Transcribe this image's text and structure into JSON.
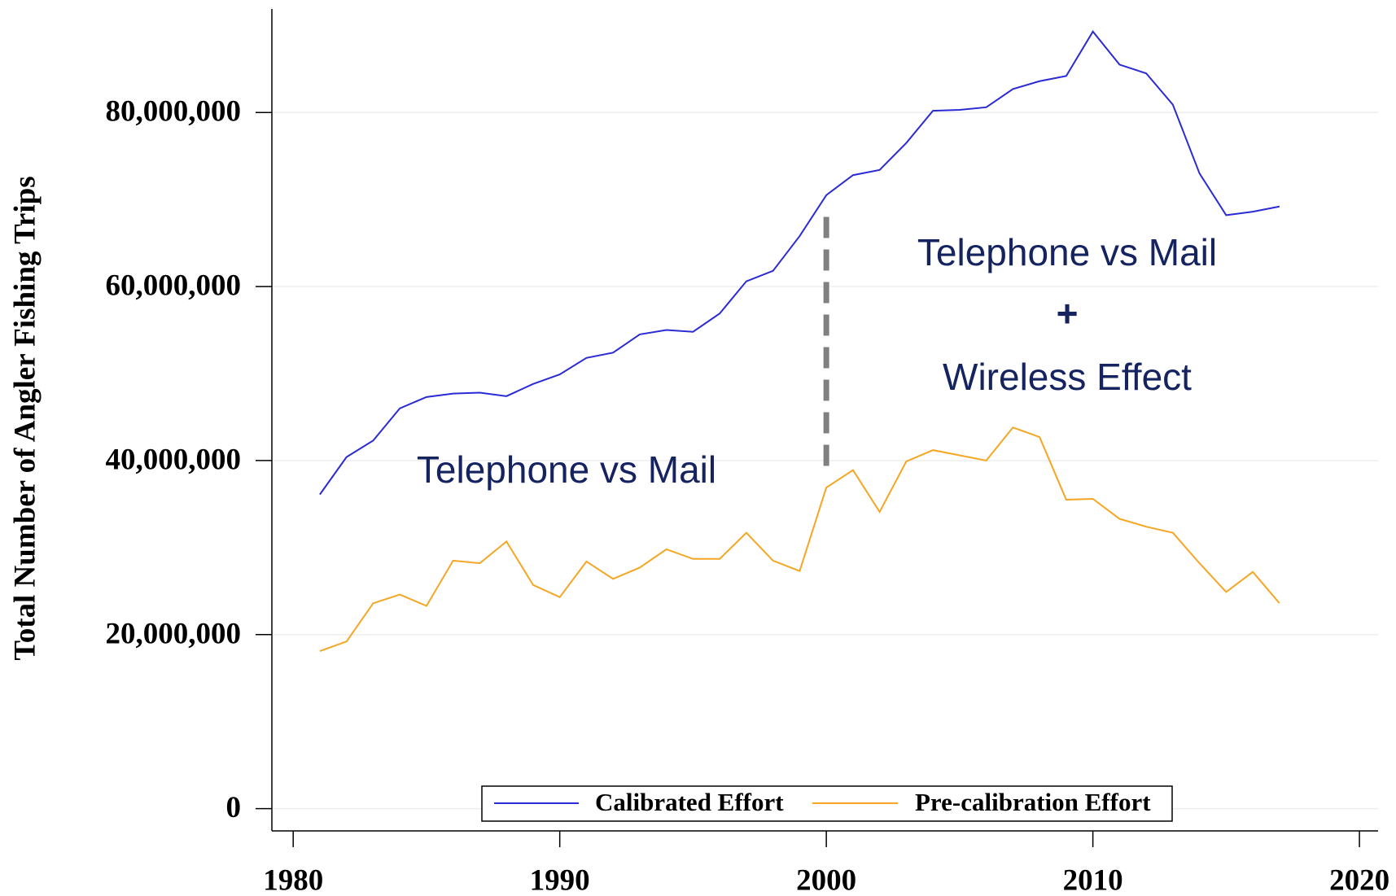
{
  "chart_data": {
    "type": "line",
    "y_label": "Total Number of Angler Fishing Trips",
    "x": [
      1981,
      1982,
      1983,
      1984,
      1985,
      1986,
      1987,
      1988,
      1989,
      1990,
      1991,
      1992,
      1993,
      1994,
      1995,
      1996,
      1997,
      1998,
      1999,
      2000,
      2001,
      2002,
      2003,
      2004,
      2005,
      2006,
      2007,
      2008,
      2009,
      2010,
      2011,
      2012,
      2013,
      2014,
      2015,
      2016,
      2017
    ],
    "series": [
      {
        "name": "Calibrated Effort",
        "color": "#2b2bd6",
        "values": [
          36100000,
          40400000,
          42300000,
          46000000,
          47300000,
          47700000,
          47800000,
          47400000,
          48800000,
          49900000,
          51800000,
          52400000,
          54500000,
          55000000,
          54800000,
          56900000,
          60600000,
          61800000,
          65800000,
          70500000,
          72800000,
          73400000,
          76500000,
          80200000,
          80300000,
          80600000,
          82700000,
          83600000,
          84200000,
          89300000,
          85500000,
          84500000,
          80900000,
          73000000,
          68200000,
          68600000,
          69200000
        ]
      },
      {
        "name": "Pre-calibration Effort",
        "color": "#f5a623",
        "values": [
          18100000,
          19200000,
          23600000,
          24600000,
          23300000,
          28500000,
          28200000,
          30700000,
          25700000,
          24300000,
          28400000,
          26400000,
          27700000,
          29800000,
          28700000,
          28700000,
          31700000,
          28500000,
          27300000,
          36900000,
          38900000,
          34100000,
          39900000,
          41200000,
          40600000,
          40000000,
          43800000,
          42700000,
          35500000,
          35600000,
          33300000,
          32400000,
          31700000,
          28200000,
          24900000,
          27200000,
          23600000
        ]
      }
    ],
    "xlim": [
      1979.2,
      2020.7
    ],
    "ylim": [
      -2560000,
      91900000
    ],
    "xticks": [
      1980,
      1990,
      2000,
      2010,
      2020
    ],
    "yticks": [
      0,
      {
        "value": 20000000,
        "label": "20,000,000"
      },
      {
        "value": 40000000,
        "label": "40,000,000"
      },
      {
        "value": 60000000,
        "label": "60,000,000"
      },
      {
        "value": 80000000,
        "label": "80,000,000"
      }
    ],
    "grid": true,
    "legend": "bottom",
    "reference_line": {
      "x": 2000,
      "ymin": 38500000,
      "ymax": 68000000,
      "color": "#808080"
    },
    "annotations": [
      "Telephone vs Mail",
      "Telephone vs Mail",
      "+",
      "Wireless Effect"
    ]
  }
}
